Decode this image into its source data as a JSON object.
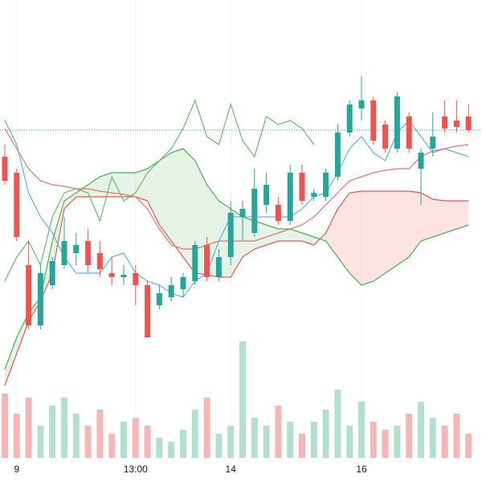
{
  "chart_data": {
    "type": "candlestick",
    "categories": [
      null,
      "9",
      null,
      null,
      null,
      null,
      null,
      null,
      null,
      null,
      null,
      "13:00",
      null,
      null,
      null,
      null,
      null,
      null,
      null,
      "14",
      null,
      null,
      null,
      null,
      null,
      null,
      null,
      null,
      null,
      null,
      "16",
      null,
      null,
      null,
      null,
      null,
      null,
      null,
      null,
      null
    ],
    "open": [
      405,
      385,
      270,
      195,
      245,
      270,
      285,
      300,
      285,
      260,
      255,
      260,
      245,
      220,
      230,
      240,
      250,
      295,
      255,
      280,
      330,
      310,
      345,
      345,
      325,
      385,
      355,
      355,
      380,
      435,
      465,
      475,
      445,
      415,
      455,
      390,
      415,
      455,
      450,
      455
    ],
    "high": [
      420,
      390,
      300,
      270,
      280,
      330,
      310,
      315,
      300,
      280,
      270,
      270,
      250,
      245,
      255,
      260,
      300,
      305,
      290,
      350,
      350,
      390,
      385,
      355,
      395,
      395,
      365,
      390,
      445,
      475,
      505,
      480,
      450,
      485,
      460,
      415,
      460,
      475,
      475,
      470
    ],
    "low": [
      370,
      300,
      190,
      190,
      240,
      265,
      270,
      260,
      255,
      245,
      245,
      220,
      180,
      215,
      225,
      230,
      245,
      250,
      250,
      270,
      300,
      305,
      335,
      320,
      320,
      345,
      350,
      350,
      375,
      430,
      450,
      420,
      410,
      410,
      410,
      345,
      405,
      435,
      435,
      435
    ],
    "close": [
      375,
      305,
      195,
      260,
      275,
      300,
      295,
      270,
      265,
      255,
      258,
      245,
      180,
      235,
      245,
      255,
      295,
      255,
      280,
      335,
      340,
      365,
      370,
      325,
      385,
      350,
      360,
      385,
      435,
      470,
      475,
      425,
      415,
      480,
      415,
      410,
      430,
      440,
      442,
      438
    ],
    "volume": [
      80,
      55,
      75,
      40,
      65,
      75,
      55,
      40,
      60,
      30,
      45,
      50,
      40,
      25,
      20,
      35,
      60,
      75,
      30,
      40,
      145,
      50,
      40,
      65,
      45,
      30,
      45,
      60,
      85,
      40,
      70,
      45,
      35,
      40,
      55,
      70,
      50,
      40,
      55,
      30
    ],
    "ylim": [
      0,
      600
    ],
    "vlim": [
      0,
      150
    ],
    "up_color": "#26a69a",
    "down_color": "#ef5350",
    "volume_up_color": "#b2dfcf",
    "volume_down_color": "#f5b7b6",
    "last_price": 438,
    "last_price_color": "#26a69a",
    "cloud": {
      "span_a": [
        140,
        180,
        210,
        230,
        300,
        350,
        360,
        370,
        380,
        385,
        385,
        385,
        390,
        400,
        410,
        415,
        400,
        370,
        350,
        340,
        330,
        325,
        320,
        315,
        315,
        310,
        305,
        300,
        280,
        260,
        245,
        250,
        260,
        270,
        280,
        300,
        305,
        310,
        315,
        320
      ],
      "span_b": [
        120,
        160,
        200,
        225,
        260,
        340,
        355,
        355,
        355,
        355,
        355,
        355,
        350,
        320,
        300,
        280,
        260,
        258,
        255,
        255,
        280,
        290,
        295,
        300,
        300,
        300,
        295,
        310,
        340,
        360,
        362,
        362,
        362,
        362,
        362,
        360,
        352,
        350,
        350,
        350
      ],
      "span_a_color": "#4caf50",
      "span_b_color": "#ef5350",
      "up_fill": "rgba(76,175,80,0.15)",
      "down_fill": "rgba(244,67,54,0.15)"
    },
    "lines": [
      {
        "color": "#5ab4e5",
        "values": [
          450,
          420,
          360,
          330,
          310,
          280,
          260,
          260,
          260,
          280,
          285,
          260,
          250,
          245,
          235,
          230,
          250,
          260,
          300,
          330,
          330,
          330,
          330,
          330,
          330,
          340,
          355,
          360,
          385,
          415,
          430,
          410,
          400,
          435,
          450,
          430,
          410,
          415,
          410,
          405
        ]
      },
      {
        "color": "#e57373",
        "values": [
          440,
          415,
          390,
          375,
          370,
          368,
          365,
          365,
          362,
          360,
          358,
          355,
          340,
          315,
          295,
          290,
          290,
          295,
          300,
          300,
          300,
          300,
          305,
          310,
          315,
          320,
          330,
          345,
          360,
          375,
          380,
          385,
          388,
          390,
          390,
          405,
          412,
          415,
          418,
          420
        ]
      },
      {
        "color": "#66bb6a",
        "values": [
          250,
          280,
          300,
          270,
          330,
          360,
          365,
          360,
          325,
          380,
          350,
          360,
          385,
          400,
          415,
          440,
          475,
          430,
          420,
          470,
          425,
          405,
          455,
          445,
          450,
          440,
          420,
          null,
          null,
          null,
          null,
          null,
          null,
          null,
          null,
          null,
          null,
          null,
          null,
          null
        ]
      }
    ]
  }
}
